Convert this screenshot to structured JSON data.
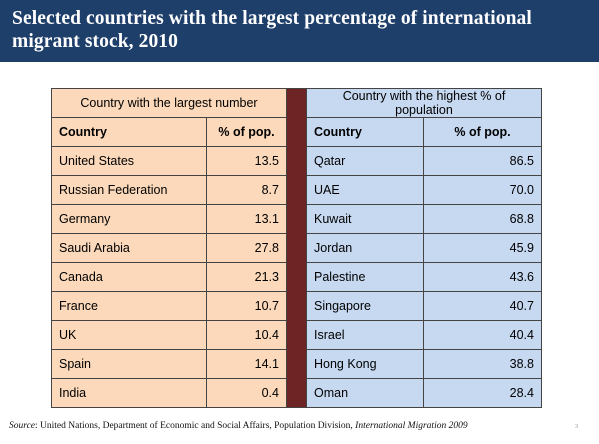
{
  "title": {
    "line1": "Selected countries with the largest percentage of international",
    "line2": "migrant stock, 2010"
  },
  "table": {
    "left_group_header": "Country with the largest number",
    "right_group_header_line1": "Country with the highest % of",
    "right_group_header_line2": "population",
    "columns": {
      "country": "Country",
      "pct": "% of pop."
    },
    "left_rows": [
      {
        "country": "United States",
        "pct": "13.5"
      },
      {
        "country": "Russian Federation",
        "pct": "8.7"
      },
      {
        "country": "Germany",
        "pct": "13.1"
      },
      {
        "country": "Saudi Arabia",
        "pct": "27.8"
      },
      {
        "country": "Canada",
        "pct": "21.3"
      },
      {
        "country": "France",
        "pct": "10.7"
      },
      {
        "country": "UK",
        "pct": "10.4"
      },
      {
        "country": "Spain",
        "pct": "14.1"
      },
      {
        "country": "India",
        "pct": "0.4"
      }
    ],
    "right_rows": [
      {
        "country": "Qatar",
        "pct": "86.5"
      },
      {
        "country": "UAE",
        "pct": "70.0"
      },
      {
        "country": "Kuwait",
        "pct": "68.8"
      },
      {
        "country": "Jordan",
        "pct": "45.9"
      },
      {
        "country": "Palestine",
        "pct": "43.6"
      },
      {
        "country": "Singapore",
        "pct": "40.7"
      },
      {
        "country": "Israel",
        "pct": "40.4"
      },
      {
        "country": "Hong Kong",
        "pct": "38.8"
      },
      {
        "country": "Oman",
        "pct": "28.4"
      }
    ]
  },
  "source": {
    "label": "Source",
    "text": ": United Nations, Department of Economic and Social Affairs, Population Division, ",
    "publication": "International Migration 2009"
  },
  "page_number": "3",
  "colors": {
    "title_bar": "#1f3f6b",
    "left_fill": "#fbd9ba",
    "right_fill": "#c6d9f1",
    "divider": "#6e2424"
  }
}
